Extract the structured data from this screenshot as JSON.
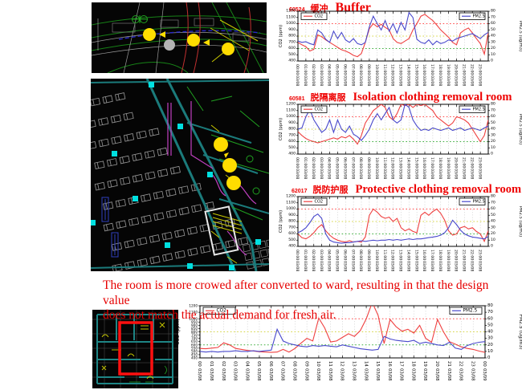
{
  "colors": {
    "title_red": "#ee0000",
    "caption_red": "#e60000",
    "co2_line": "#ef4040",
    "pm25_line": "#4848cc",
    "ref_red": "#ff4a4a",
    "ref_yellow": "#d6d645",
    "ref_green": "#3dae3d",
    "cad_marker_yellow": "#ffdd00",
    "cad_highlight_red": "#ff1010"
  },
  "caption": {
    "line1": "The room is more crowed after converted to ward, resulting in that the design value",
    "line2": "does not match the actual demand for fresh air."
  },
  "shared": {
    "x_labels_hourly": [
      [
        "00:00",
        "03/08"
      ],
      [
        "01:00",
        "03/08"
      ],
      [
        "02:00",
        "03/08"
      ],
      [
        "03:00",
        "03/08"
      ],
      [
        "04:00",
        "03/08"
      ],
      [
        "05:00",
        "03/08"
      ],
      [
        "06:00",
        "03/08"
      ],
      [
        "07:00",
        "03/08"
      ],
      [
        "08:00",
        "03/08"
      ],
      [
        "09:00",
        "03/08"
      ],
      [
        "10:00",
        "03/08"
      ],
      [
        "11:00",
        "03/08"
      ],
      [
        "12:00",
        "03/08"
      ],
      [
        "13:00",
        "03/08"
      ],
      [
        "14:00",
        "03/08"
      ],
      [
        "15:00",
        "03/08"
      ],
      [
        "16:00",
        "03/08"
      ],
      [
        "17:00",
        "03/08"
      ],
      [
        "18:00",
        "03/08"
      ],
      [
        "19:00",
        "03/08"
      ],
      [
        "20:00",
        "03/08"
      ],
      [
        "21:00",
        "03/08"
      ],
      [
        "22:00",
        "03/08"
      ],
      [
        "23:00",
        "03/08"
      ]
    ]
  },
  "chart_data": [
    {
      "type": "line",
      "id": "60524",
      "title_cn": "缓冲",
      "title_en": "Buffer",
      "ylabel_left": "CO2 (ppm)",
      "ylabel_right": "PM2.5 (ug/m3)",
      "ylim_left": [
        400,
        1200
      ],
      "yticks_left": [
        400,
        500,
        600,
        700,
        800,
        900,
        1000,
        1100,
        1200
      ],
      "ylim_right": [
        0,
        80
      ],
      "yticks_right": [
        0,
        10,
        20,
        30,
        40,
        50,
        60,
        70,
        80
      ],
      "x_div": 24,
      "x_labels_ref": "x_labels_hourly",
      "grid": true,
      "legend_left": "CO2",
      "legend_right": "PM2.5",
      "reference_lines": [
        {
          "value": 1000,
          "color": "#ff4a4a"
        },
        {
          "value": 800,
          "color": "#d6d645"
        },
        {
          "value": 600,
          "color": "#3dae3d"
        }
      ],
      "series": [
        {
          "name": "CO2",
          "axis": "left",
          "color": "#ef4040",
          "values": [
            700,
            660,
            630,
            560,
            590,
            820,
            790,
            740,
            700,
            660,
            620,
            580,
            560,
            530,
            490,
            470,
            520,
            700,
            920,
            1000,
            950,
            990,
            940,
            900,
            760,
            700,
            680,
            720,
            760,
            900,
            1000,
            1120,
            1150,
            1100,
            1050,
            980,
            900,
            840,
            780,
            700,
            660,
            850,
            900,
            930,
            850,
            760,
            680,
            510,
            860
          ]
        },
        {
          "name": "PM2.5",
          "axis": "right",
          "color": "#4848cc",
          "values": [
            32,
            30,
            31,
            28,
            26,
            50,
            45,
            35,
            30,
            48,
            36,
            46,
            34,
            30,
            36,
            28,
            26,
            30,
            55,
            72,
            60,
            50,
            65,
            48,
            60,
            45,
            62,
            50,
            78,
            70,
            35,
            30,
            28,
            34,
            26,
            32,
            28,
            30,
            34,
            32,
            36,
            38,
            40,
            42,
            44,
            40,
            36,
            42,
            46
          ]
        }
      ]
    },
    {
      "type": "line",
      "id": "60581",
      "title_cn": "脱隔离服",
      "title_en": "Isolation clothing removal room",
      "ylabel_left": "CO2 (ppm)",
      "ylabel_right": "PM2.5 (ug/m3)",
      "ylim_left": [
        400,
        1200
      ],
      "yticks_left": [
        400,
        500,
        600,
        700,
        800,
        900,
        1000,
        1100,
        1200
      ],
      "ylim_right": [
        0,
        80
      ],
      "yticks_right": [
        0,
        10,
        20,
        30,
        40,
        50,
        60,
        70,
        80
      ],
      "x_div": 24,
      "x_labels_ref": "x_labels_hourly",
      "grid": true,
      "legend_left": "CO2",
      "legend_right": "PM2.5",
      "reference_lines": [
        {
          "value": 1000,
          "color": "#ff4a4a"
        },
        {
          "value": 800,
          "color": "#d6d645"
        },
        {
          "value": 600,
          "color": "#3dae3d"
        }
      ],
      "series": [
        {
          "name": "CO2",
          "axis": "left",
          "color": "#ef4040",
          "values": [
            760,
            700,
            650,
            620,
            600,
            580,
            600,
            620,
            640,
            660,
            640,
            680,
            660,
            700,
            640,
            560,
            700,
            900,
            1000,
            1100,
            1150,
            1200,
            1150,
            1000,
            950,
            1050,
            1200,
            1180,
            1200,
            1150,
            1200,
            1180,
            1200,
            1150,
            1100,
            1000,
            950,
            900,
            850,
            900,
            1000,
            980,
            950,
            900,
            800,
            700,
            600,
            700,
            950
          ]
        },
        {
          "name": "PM2.5",
          "axis": "right",
          "color": "#4848cc",
          "values": [
            40,
            42,
            60,
            72,
            55,
            45,
            35,
            40,
            55,
            35,
            55,
            40,
            35,
            45,
            32,
            28,
            22,
            30,
            40,
            55,
            65,
            55,
            65,
            75,
            55,
            50,
            55,
            80,
            75,
            55,
            45,
            38,
            40,
            38,
            42,
            40,
            38,
            40,
            42,
            38,
            40,
            42,
            38,
            40,
            42,
            40,
            38,
            42,
            45
          ]
        }
      ]
    },
    {
      "type": "line",
      "id": "62017",
      "title_cn": "脱防护服",
      "title_en": "Protective clothing removal room",
      "ylabel_left": "CO2 (ppm)",
      "ylabel_right": "PM2.5 (ug/m3)",
      "ylim_left": [
        400,
        1200
      ],
      "yticks_left": [
        400,
        500,
        600,
        700,
        800,
        900,
        1000,
        1100,
        1200
      ],
      "ylim_right": [
        0,
        80
      ],
      "yticks_right": [
        0,
        10,
        20,
        30,
        40,
        50,
        60,
        70,
        80
      ],
      "x_div": 24,
      "x_labels_ref": "x_labels_hourly",
      "grid": true,
      "legend_left": "CO2",
      "legend_right": "PM2.5",
      "reference_lines": [
        {
          "value": 1000,
          "color": "#ff4a4a"
        },
        {
          "value": 800,
          "color": "#d6d645"
        },
        {
          "value": 600,
          "color": "#3dae3d"
        }
      ],
      "series": [
        {
          "name": "CO2",
          "axis": "left",
          "color": "#ef4040",
          "values": [
            600,
            540,
            520,
            560,
            620,
            700,
            750,
            650,
            580,
            530,
            500,
            480,
            470,
            490,
            470,
            480,
            470,
            550,
            900,
            1000,
            950,
            880,
            850,
            870,
            800,
            850,
            700,
            650,
            680,
            640,
            620,
            900,
            950,
            900,
            960,
            1000,
            930,
            820,
            650,
            580,
            600,
            700,
            720,
            680,
            700,
            640,
            600,
            480,
            650
          ]
        },
        {
          "name": "PM2.5",
          "axis": "right",
          "color": "#4848cc",
          "values": [
            22,
            25,
            30,
            38,
            48,
            52,
            45,
            20,
            10,
            7,
            6,
            5,
            6,
            6,
            7,
            8,
            9,
            8,
            9,
            10,
            9,
            10,
            10,
            11,
            10,
            11,
            10,
            11,
            12,
            11,
            12,
            12,
            13,
            14,
            15,
            16,
            18,
            22,
            30,
            42,
            35,
            26,
            20,
            17,
            15,
            14,
            13,
            12,
            16
          ]
        }
      ]
    },
    {
      "type": "line",
      "id": "",
      "title_cn": "",
      "title_en": "",
      "ylabel_left": "CO2 (ppm)",
      "ylabel_right": "PM2.5 (ug/m3)",
      "ylim_left": [
        400,
        1200
      ],
      "yticks_left": [
        400,
        450,
        500,
        550,
        600,
        650,
        700,
        750,
        800,
        850,
        900,
        950,
        1000,
        1100,
        1200
      ],
      "ylim_right": [
        0,
        80
      ],
      "yticks_right": [
        0,
        10,
        20,
        30,
        40,
        50,
        60,
        70,
        80
      ],
      "x_div": 24,
      "x_labels": [
        [
          "00",
          "03/08"
        ],
        [
          "01",
          "03/08"
        ],
        [
          "02",
          "03/08"
        ],
        [
          "03",
          "03/08"
        ],
        [
          "04",
          "03/08"
        ],
        [
          "05",
          "03/08"
        ],
        [
          "06",
          "03/08"
        ],
        [
          "07",
          "03/08"
        ],
        [
          "08",
          "03/08"
        ],
        [
          "09",
          "03/08"
        ],
        [
          "10",
          "03/08"
        ],
        [
          "11",
          "03/08"
        ],
        [
          "12",
          "03/08"
        ],
        [
          "13",
          "03/08"
        ],
        [
          "14",
          "03/08"
        ],
        [
          "15",
          "03/08"
        ],
        [
          "16",
          "03/08"
        ],
        [
          "17",
          "03/08"
        ],
        [
          "18",
          "03/08"
        ],
        [
          "19",
          "03/08"
        ],
        [
          "20",
          "03/08"
        ],
        [
          "21",
          "03/08"
        ],
        [
          "22",
          "03/08"
        ],
        [
          "23",
          "03/08"
        ],
        [
          "00",
          "03/09"
        ]
      ],
      "grid": true,
      "legend_left": "CO2",
      "legend_right": "PM2.5",
      "reference_lines": [
        {
          "value": 1000,
          "color": "#ff4a4a"
        },
        {
          "value": 800,
          "color": "#d6d645"
        },
        {
          "value": 600,
          "color": "#3dae3d"
        }
      ],
      "series": [
        {
          "name": "CO2",
          "axis": "left",
          "color": "#ef4040",
          "values": [
            545,
            540,
            550,
            560,
            630,
            600,
            545,
            530,
            515,
            505,
            495,
            490,
            485,
            490,
            530,
            490,
            545,
            625,
            700,
            660,
            1010,
            860,
            645,
            660,
            715,
            770,
            730,
            820,
            1000,
            1250,
            1050,
            620,
            990,
            880,
            810,
            840,
            780,
            900,
            700,
            640,
            990,
            800,
            650,
            610,
            570,
            545,
            530,
            505,
            485
          ]
        },
        {
          "name": "PM2.5",
          "axis": "right",
          "color": "#4848cc",
          "values": [
            10,
            9,
            10,
            9,
            10,
            10,
            11,
            10,
            10,
            11,
            10,
            11,
            12,
            44,
            26,
            22,
            20,
            18,
            17,
            19,
            18,
            19,
            18,
            17,
            20,
            18,
            16,
            14,
            13,
            12,
            13,
            33,
            29,
            27,
            26,
            25,
            27,
            22,
            24,
            22,
            20,
            19,
            24,
            15,
            13,
            19,
            22,
            24,
            25
          ]
        }
      ]
    }
  ]
}
